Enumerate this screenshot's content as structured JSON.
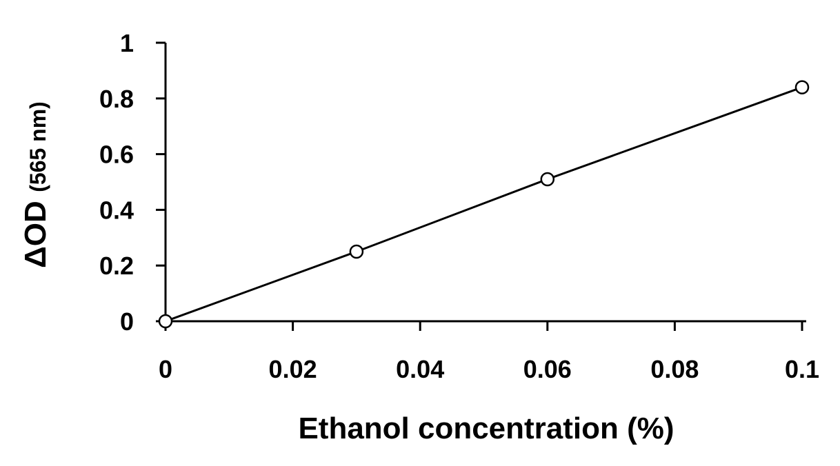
{
  "chart_data": {
    "type": "line",
    "title": "",
    "xlabel": "Ethanol concentration (%)",
    "ylabel": {
      "main": "ΔOD",
      "sub": "(565 nm)"
    },
    "xlim": [
      0,
      0.1
    ],
    "ylim": [
      0,
      1
    ],
    "x_ticks": [
      "0",
      "0.02",
      "0.04",
      "0.06",
      "0.08",
      "0.1"
    ],
    "y_ticks": [
      "0",
      "0.2",
      "0.4",
      "0.6",
      "0.8",
      "1"
    ],
    "grid": false,
    "legend": "none",
    "series": [
      {
        "x": [
          0,
          0.03,
          0.06,
          0.1
        ],
        "y": [
          0,
          0.25,
          0.51,
          0.84
        ],
        "marker": "open-circle",
        "color": "#000000"
      }
    ]
  }
}
